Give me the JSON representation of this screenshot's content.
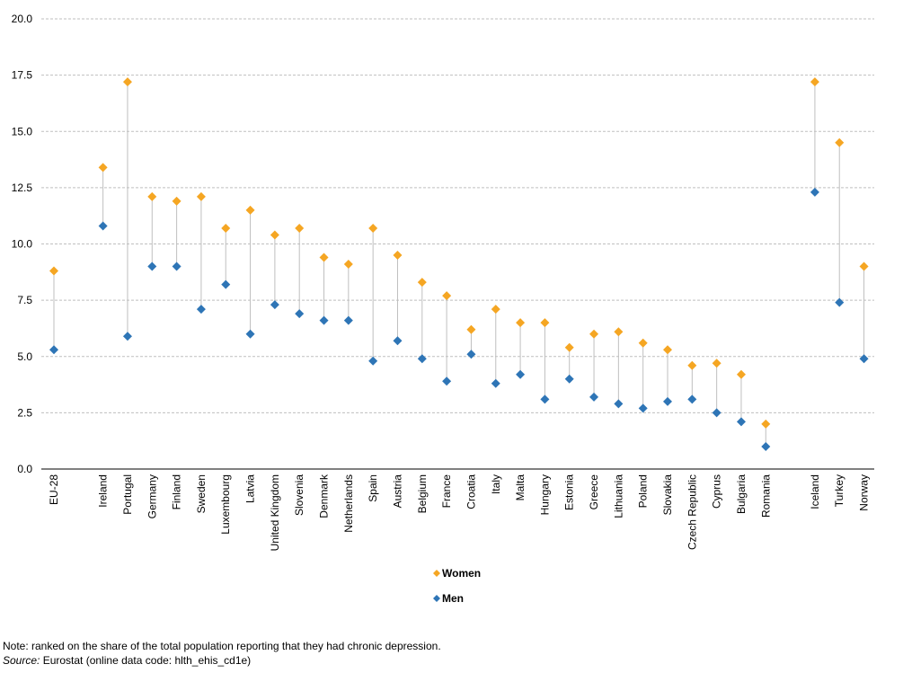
{
  "chart_data": {
    "type": "scatter",
    "categories": [
      "EU-28",
      "Ireland",
      "Portugal",
      "Germany",
      "Finland",
      "Sweden",
      "Luxembourg",
      "Latvia",
      "United Kingdom",
      "Slovenia",
      "Denmark",
      "Netherlands",
      "Spain",
      "Austria",
      "Belgium",
      "France",
      "Croatia",
      "Italy",
      "Malta",
      "Hungary",
      "Estonia",
      "Greece",
      "Lithuania",
      "Poland",
      "Slovakia",
      "Czech Republic",
      "Cyprus",
      "Bulgaria",
      "Romania",
      "Iceland",
      "Turkey",
      "Norway"
    ],
    "series": [
      {
        "name": "Women",
        "color": "#f5a623",
        "marker": "diamond",
        "values": [
          8.8,
          13.4,
          17.2,
          12.1,
          11.9,
          12.1,
          10.7,
          11.5,
          10.4,
          10.7,
          9.4,
          9.1,
          10.7,
          9.5,
          8.3,
          7.7,
          6.2,
          7.1,
          6.5,
          6.5,
          5.4,
          6.0,
          6.1,
          5.6,
          5.3,
          4.6,
          4.7,
          4.2,
          2.0,
          17.2,
          14.5,
          9.0
        ]
      },
      {
        "name": "Men",
        "color": "#2e75b6",
        "marker": "diamond",
        "values": [
          5.3,
          10.8,
          5.9,
          9.0,
          9.0,
          7.1,
          8.2,
          6.0,
          7.3,
          6.9,
          6.6,
          6.6,
          4.8,
          5.7,
          4.9,
          3.9,
          5.1,
          3.8,
          4.2,
          3.1,
          4.0,
          3.2,
          2.9,
          2.7,
          3.0,
          3.1,
          2.5,
          2.1,
          1.0,
          12.3,
          7.4,
          4.9
        ]
      }
    ],
    "ylim": [
      0,
      20
    ],
    "yticks": [
      "0.0",
      "2.5",
      "5.0",
      "7.5",
      "10.0",
      "12.5",
      "15.0",
      "17.5",
      "20.0"
    ],
    "grid": "horizontal dashed",
    "legend_position": "bottom-center",
    "connector_color": "#bfbfbf",
    "gridline_color": "#bfbfbf",
    "axis_label_color": "#000000"
  },
  "footer": {
    "note": "Note: ranked on the share of the total population reporting that they had chronic depression.",
    "source_label": "Source:",
    "source_text": " Eurostat (online data code: hlth_ehis_cd1e)"
  }
}
